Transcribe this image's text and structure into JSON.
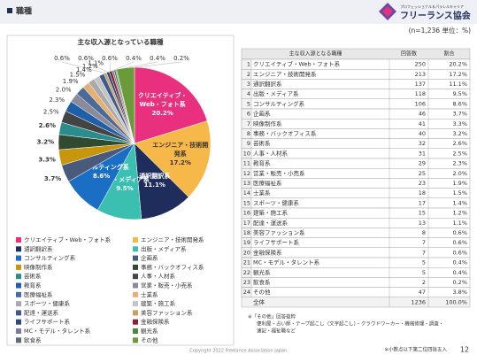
{
  "header": {
    "title": "職種",
    "logo_sub": "プロフェッショナル＆パラレルキャリア",
    "logo": "フリーランス協会",
    "note": "(n=1,236 単位：%)"
  },
  "chart_data": {
    "type": "pie",
    "title": "主な収入源となっている職種",
    "categories": [
      "クリエイティブ・Web・フォト系",
      "エンジニア・技術開発系",
      "通訳翻訳系",
      "出版・メディア系",
      "コンサルティング系",
      "企画系",
      "映像制作系",
      "事務・バックオフィス系",
      "芸術系",
      "人事・人材系",
      "教育系",
      "営業・販売・小売系",
      "医療福祉系",
      "士業系",
      "スポーツ・健康系",
      "建築・施工系",
      "配達・運送系",
      "美容ファッション系",
      "ライフサポート系",
      "金融保険系",
      "MC・モデル・タレント系",
      "観光系",
      "飲食系",
      "その他"
    ],
    "values": [
      20.2,
      17.2,
      11.1,
      9.5,
      8.6,
      3.7,
      3.3,
      3.2,
      2.6,
      2.5,
      2.3,
      2.0,
      1.9,
      1.5,
      1.4,
      1.2,
      1.1,
      0.6,
      0.6,
      0.6,
      0.4,
      0.4,
      0.2,
      3.8
    ],
    "value_labels": [
      "20.2%",
      "17.2%",
      "11.1%",
      "9.5%",
      "8.6%",
      "3.7%",
      "3.3%",
      "3.2%",
      "2.6%",
      "2.5%",
      "2.3%",
      "2.0%",
      "1.9%",
      "1.5%",
      "1.4%",
      "1.2%",
      "1.1%",
      "0.6%",
      "0.6%",
      "0.6%",
      "0.4%",
      "0.4%",
      "0.2%",
      null
    ],
    "colors": [
      "#e8307e",
      "#f7b84a",
      "#1f2d5c",
      "#3bbfb0",
      "#1a6fc4",
      "#4a5a7a",
      "#c8960c",
      "#2f4a2f",
      "#2a8c8c",
      "#444444",
      "#1f5fa8",
      "#8a8a9a",
      "#4a6a9a",
      "#e8b070",
      "#aaaaaa",
      "#c4c4c4",
      "#3a5a90",
      "#c8a060",
      "#2e4a7a",
      "#8a2030",
      "#7a7aa0",
      "#4a8a40",
      "#5a6a7a",
      "#6a9a3a"
    ]
  },
  "table": {
    "header": [
      "主な収入源となる職種",
      "回答数",
      "割合"
    ],
    "rows": [
      [
        "1",
        "クリエイティブ・Web・フォト系",
        "250",
        "20.2%"
      ],
      [
        "2",
        "エンジニア・技術開発系",
        "213",
        "17.2%"
      ],
      [
        "3",
        "通訳翻訳系",
        "137",
        "11.1%"
      ],
      [
        "4",
        "出版・メディア系",
        "118",
        "9.5%"
      ],
      [
        "5",
        "コンサルティング系",
        "106",
        "8.6%"
      ],
      [
        "6",
        "企画系",
        "46",
        "3.7%"
      ],
      [
        "7",
        "映像制作系",
        "41",
        "3.3%"
      ],
      [
        "8",
        "事務・バックオフィス系",
        "40",
        "3.2%"
      ],
      [
        "9",
        "芸術系",
        "32",
        "2.6%"
      ],
      [
        "10",
        "人事・人材系",
        "31",
        "2.5%"
      ],
      [
        "11",
        "教育系",
        "29",
        "2.3%"
      ],
      [
        "12",
        "営業・販売・小売系",
        "25",
        "2.0%"
      ],
      [
        "13",
        "医療福祉系",
        "23",
        "1.9%"
      ],
      [
        "14",
        "士業系",
        "18",
        "1.5%"
      ],
      [
        "15",
        "スポーツ・健康系",
        "17",
        "1.4%"
      ],
      [
        "16",
        "建築・施工系",
        "15",
        "1.2%"
      ],
      [
        "17",
        "配達・運送系",
        "13",
        "1.1%"
      ],
      [
        "18",
        "美容ファッション系",
        "8",
        "0.6%"
      ],
      [
        "19",
        "ライフサポート系",
        "7",
        "0.6%"
      ],
      [
        "20",
        "金融保険系",
        "7",
        "0.6%"
      ],
      [
        "21",
        "MC・モデル・タレント系",
        "5",
        "0.4%"
      ],
      [
        "22",
        "観光系",
        "5",
        "0.4%"
      ],
      [
        "23",
        "飲食系",
        "2",
        "0.2%"
      ],
      [
        "24",
        "その他",
        "47",
        "3.8%"
      ]
    ],
    "total": [
      "全体",
      "1236",
      "100.0%"
    ]
  },
  "footnote": [
    "※「その他」回答抜粋",
    "便利屋・占い師・テープ起こし（文字起こし）・クラウドワーカー・機械修理・調査・",
    "速記・福祉職など"
  ],
  "footer": {
    "copyright": "Copyright 2022 Freelance Association Japan.",
    "rounding": "※小数点以下第二位四捨五入",
    "page": "12"
  }
}
